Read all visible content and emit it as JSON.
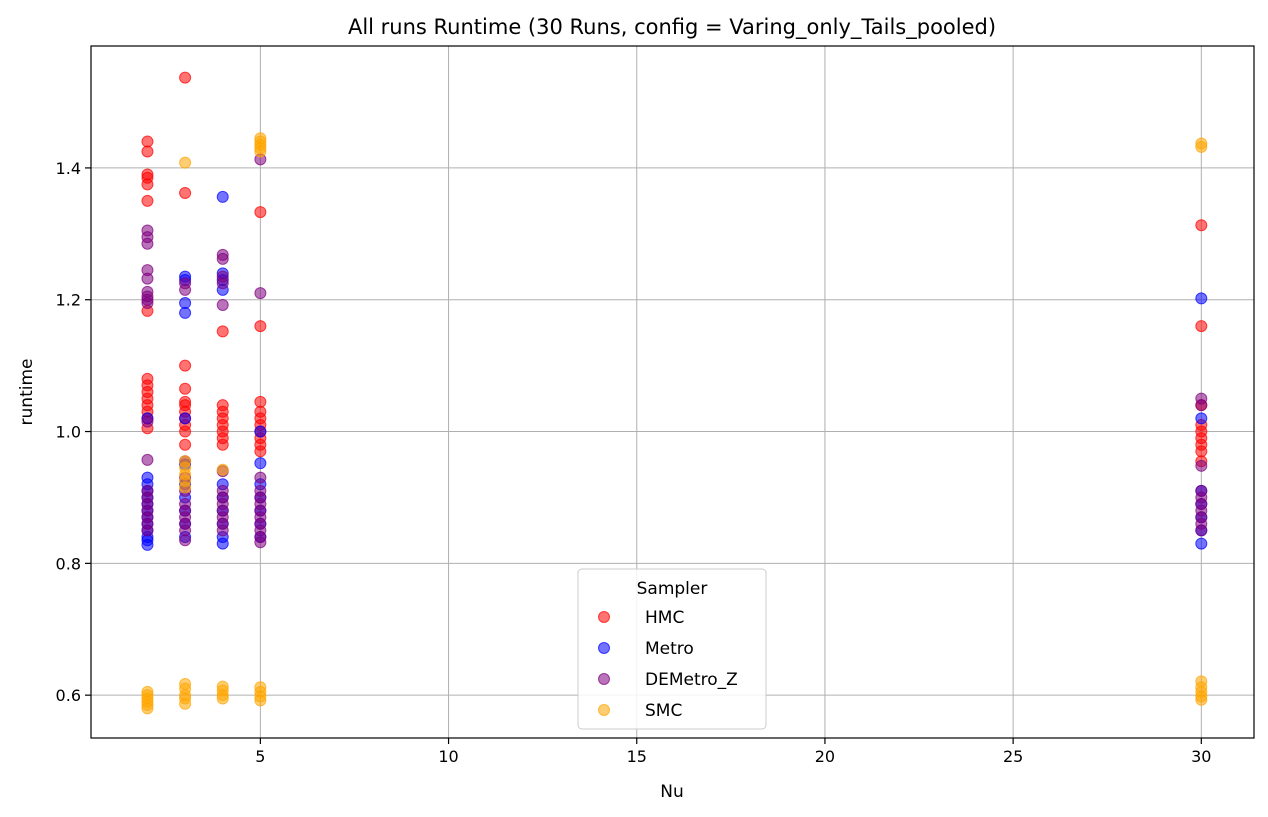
{
  "chart_data": {
    "type": "scatter",
    "title": "All runs Runtime (30 Runs, config = Varing_only_Tails_pooled)",
    "xlabel": "Nu",
    "ylabel": "runtime",
    "xlim": [
      0.5,
      31.4
    ],
    "ylim": [
      0.535,
      1.585
    ],
    "xticks": [
      5,
      10,
      15,
      20,
      25,
      30
    ],
    "yticks": [
      0.6,
      0.8,
      1.0,
      1.2,
      1.4
    ],
    "ytick_labels": [
      "0.6",
      "0.8",
      "1.0",
      "1.2",
      "1.4"
    ],
    "grid": true,
    "legend": {
      "title": "Sampler",
      "placement": "lower-center"
    },
    "series": [
      {
        "name": "HMC",
        "color": "#ff0000",
        "points": [
          [
            2,
            1.44
          ],
          [
            2,
            1.425
          ],
          [
            2,
            1.39
          ],
          [
            2,
            1.385
          ],
          [
            2,
            1.375
          ],
          [
            2,
            1.35
          ],
          [
            2,
            1.183
          ],
          [
            2,
            1.08
          ],
          [
            2,
            1.07
          ],
          [
            2,
            1.06
          ],
          [
            2,
            1.05
          ],
          [
            2,
            1.04
          ],
          [
            2,
            1.03
          ],
          [
            2,
            1.02
          ],
          [
            2,
            1.005
          ],
          [
            3,
            1.537
          ],
          [
            3,
            1.362
          ],
          [
            3,
            1.1
          ],
          [
            3,
            1.065
          ],
          [
            3,
            1.045
          ],
          [
            3,
            1.04
          ],
          [
            3,
            1.03
          ],
          [
            3,
            1.02
          ],
          [
            3,
            1.01
          ],
          [
            3,
            1.0
          ],
          [
            3,
            0.98
          ],
          [
            4,
            1.152
          ],
          [
            4,
            1.04
          ],
          [
            4,
            1.03
          ],
          [
            4,
            1.02
          ],
          [
            4,
            1.01
          ],
          [
            4,
            1.0
          ],
          [
            4,
            0.99
          ],
          [
            4,
            0.98
          ],
          [
            5,
            1.333
          ],
          [
            5,
            1.16
          ],
          [
            5,
            1.045
          ],
          [
            5,
            1.03
          ],
          [
            5,
            1.02
          ],
          [
            5,
            1.01
          ],
          [
            5,
            1.0
          ],
          [
            5,
            0.99
          ],
          [
            5,
            0.98
          ],
          [
            5,
            0.97
          ],
          [
            30,
            1.313
          ],
          [
            30,
            1.16
          ],
          [
            30,
            1.04
          ],
          [
            30,
            1.01
          ],
          [
            30,
            1.0
          ],
          [
            30,
            0.99
          ],
          [
            30,
            0.98
          ],
          [
            30,
            0.97
          ],
          [
            30,
            0.955
          ]
        ]
      },
      {
        "name": "Metro",
        "color": "#0000ff",
        "points": [
          [
            2,
            0.93
          ],
          [
            2,
            0.92
          ],
          [
            2,
            0.91
          ],
          [
            2,
            0.9
          ],
          [
            2,
            0.89
          ],
          [
            2,
            0.88
          ],
          [
            2,
            0.87
          ],
          [
            2,
            0.86
          ],
          [
            2,
            0.85
          ],
          [
            2,
            0.84
          ],
          [
            2,
            0.835
          ],
          [
            2,
            0.828
          ],
          [
            2,
            1.02
          ],
          [
            3,
            1.235
          ],
          [
            3,
            1.23
          ],
          [
            3,
            1.195
          ],
          [
            3,
            1.18
          ],
          [
            3,
            0.95
          ],
          [
            3,
            0.92
          ],
          [
            3,
            0.9
          ],
          [
            3,
            0.88
          ],
          [
            3,
            0.86
          ],
          [
            3,
            0.84
          ],
          [
            3,
            1.02
          ],
          [
            4,
            1.356
          ],
          [
            4,
            1.24
          ],
          [
            4,
            1.23
          ],
          [
            4,
            1.215
          ],
          [
            4,
            0.92
          ],
          [
            4,
            0.9
          ],
          [
            4,
            0.88
          ],
          [
            4,
            0.86
          ],
          [
            4,
            0.84
          ],
          [
            4,
            0.83
          ],
          [
            5,
            1.0
          ],
          [
            5,
            0.952
          ],
          [
            5,
            0.92
          ],
          [
            5,
            0.9
          ],
          [
            5,
            0.88
          ],
          [
            5,
            0.86
          ],
          [
            5,
            0.84
          ],
          [
            30,
            1.202
          ],
          [
            30,
            1.02
          ],
          [
            30,
            0.91
          ],
          [
            30,
            0.89
          ],
          [
            30,
            0.87
          ],
          [
            30,
            0.85
          ],
          [
            30,
            0.83
          ]
        ]
      },
      {
        "name": "DEMetro_Z",
        "color": "#800080",
        "points": [
          [
            2,
            1.305
          ],
          [
            2,
            1.295
          ],
          [
            2,
            1.285
          ],
          [
            2,
            1.245
          ],
          [
            2,
            1.232
          ],
          [
            2,
            1.212
          ],
          [
            2,
            1.205
          ],
          [
            2,
            1.2
          ],
          [
            2,
            1.195
          ],
          [
            2,
            1.015
          ],
          [
            2,
            0.957
          ],
          [
            2,
            0.91
          ],
          [
            2,
            0.9
          ],
          [
            2,
            0.89
          ],
          [
            2,
            0.88
          ],
          [
            2,
            0.87
          ],
          [
            2,
            0.86
          ],
          [
            2,
            0.85
          ],
          [
            3,
            1.225
          ],
          [
            3,
            1.215
          ],
          [
            3,
            0.955
          ],
          [
            3,
            0.93
          ],
          [
            3,
            0.91
          ],
          [
            3,
            0.89
          ],
          [
            3,
            0.88
          ],
          [
            3,
            0.87
          ],
          [
            3,
            0.86
          ],
          [
            3,
            0.85
          ],
          [
            3,
            0.835
          ],
          [
            4,
            1.268
          ],
          [
            4,
            1.262
          ],
          [
            4,
            1.235
          ],
          [
            4,
            1.225
          ],
          [
            4,
            1.192
          ],
          [
            4,
            0.94
          ],
          [
            4,
            0.91
          ],
          [
            4,
            0.9
          ],
          [
            4,
            0.89
          ],
          [
            4,
            0.88
          ],
          [
            4,
            0.87
          ],
          [
            4,
            0.86
          ],
          [
            4,
            0.85
          ],
          [
            5,
            1.413
          ],
          [
            5,
            1.21
          ],
          [
            5,
            0.93
          ],
          [
            5,
            0.91
          ],
          [
            5,
            0.9
          ],
          [
            5,
            0.89
          ],
          [
            5,
            0.88
          ],
          [
            5,
            0.87
          ],
          [
            5,
            0.86
          ],
          [
            5,
            0.85
          ],
          [
            5,
            0.84
          ],
          [
            5,
            0.832
          ],
          [
            30,
            1.05
          ],
          [
            30,
            1.04
          ],
          [
            30,
            0.948
          ],
          [
            30,
            0.91
          ],
          [
            30,
            0.9
          ],
          [
            30,
            0.89
          ],
          [
            30,
            0.88
          ],
          [
            30,
            0.87
          ],
          [
            30,
            0.86
          ],
          [
            30,
            0.85
          ]
        ]
      },
      {
        "name": "SMC",
        "color": "#ffa500",
        "points": [
          [
            2,
            0.605
          ],
          [
            2,
            0.6
          ],
          [
            2,
            0.595
          ],
          [
            2,
            0.59
          ],
          [
            2,
            0.585
          ],
          [
            2,
            0.58
          ],
          [
            3,
            1.408
          ],
          [
            3,
            0.955
          ],
          [
            3,
            0.945
          ],
          [
            3,
            0.935
          ],
          [
            3,
            0.925
          ],
          [
            3,
            0.915
          ],
          [
            3,
            0.617
          ],
          [
            3,
            0.61
          ],
          [
            3,
            0.6
          ],
          [
            3,
            0.595
          ],
          [
            3,
            0.587
          ],
          [
            4,
            0.942
          ],
          [
            4,
            0.613
          ],
          [
            4,
            0.607
          ],
          [
            4,
            0.6
          ],
          [
            4,
            0.595
          ],
          [
            5,
            1.445
          ],
          [
            5,
            1.44
          ],
          [
            5,
            1.435
          ],
          [
            5,
            1.43
          ],
          [
            5,
            1.425
          ],
          [
            5,
            0.612
          ],
          [
            5,
            0.605
          ],
          [
            5,
            0.598
          ],
          [
            5,
            0.592
          ],
          [
            30,
            1.437
          ],
          [
            30,
            1.432
          ],
          [
            30,
            0.621
          ],
          [
            30,
            0.612
          ],
          [
            30,
            0.605
          ],
          [
            30,
            0.598
          ],
          [
            30,
            0.593
          ]
        ]
      }
    ]
  }
}
